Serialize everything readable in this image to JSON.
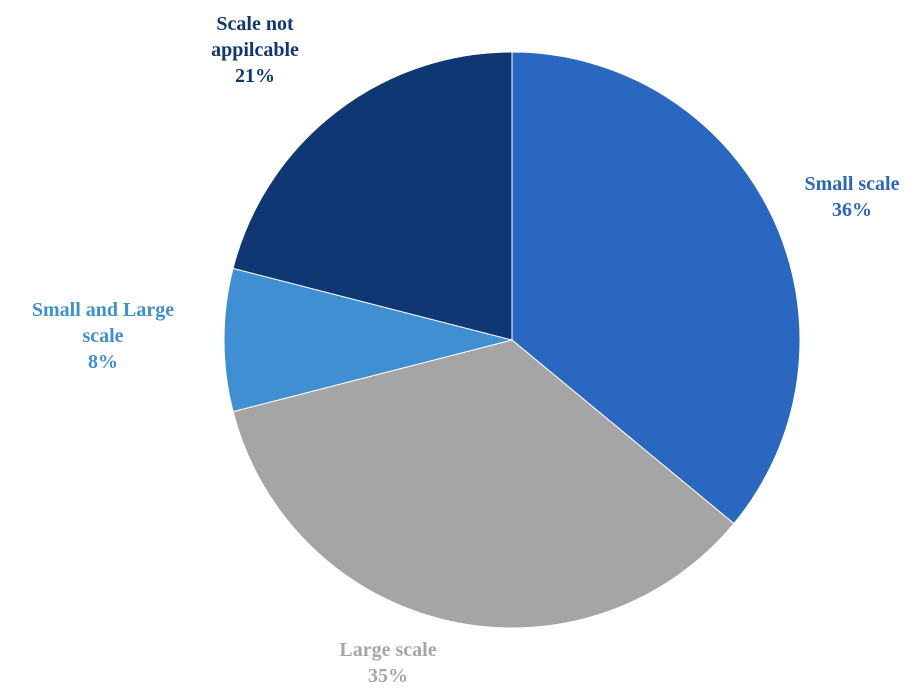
{
  "chart_data": {
    "type": "pie",
    "title": "",
    "slices": [
      {
        "name": "Small scale",
        "value": 36,
        "value_label": "36%",
        "label_lines": [
          "Small scale"
        ],
        "color": "#2a67c0"
      },
      {
        "name": "Large scale",
        "value": 35,
        "value_label": "35%",
        "label_lines": [
          "Large scale"
        ],
        "color": "#a5a5a5"
      },
      {
        "name": "Small and Large scale",
        "value": 8,
        "value_label": "8%",
        "label_lines": [
          "Small and Large",
          "scale"
        ],
        "color": "#3f8fd2"
      },
      {
        "name": "Scale not appilcable",
        "value": 21,
        "value_label": "21%",
        "label_lines": [
          "Scale not",
          "appilcable"
        ],
        "color": "#0e3773"
      }
    ],
    "start": "12 o'clock",
    "direction": "clockwise",
    "legend": "none"
  }
}
